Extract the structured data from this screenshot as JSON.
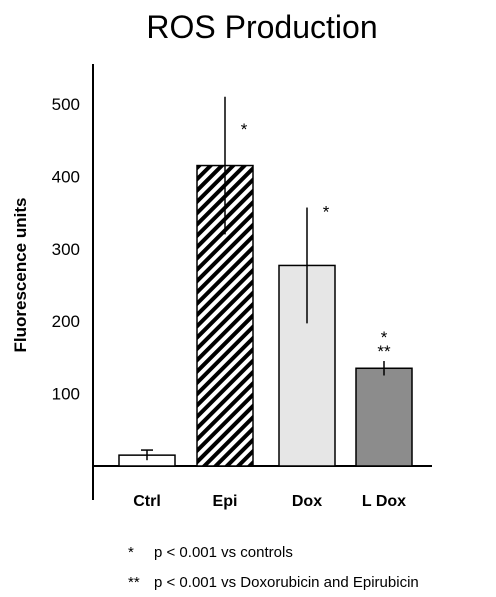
{
  "chart_data": {
    "type": "bar",
    "title": "ROS Production",
    "ylabel": "Fluorescence units",
    "xlabel": "",
    "categories": [
      "Ctrl",
      "Epi",
      "Dox",
      "L Dox"
    ],
    "values": [
      15,
      415,
      277,
      135
    ],
    "errors": [
      7,
      95,
      80,
      10
    ],
    "annotations": [
      "",
      "*",
      "*",
      "*\n**"
    ],
    "bar_styles": [
      "white",
      "hatched",
      "lightgray",
      "gray"
    ],
    "ylim": [
      0,
      550
    ],
    "yticks": [
      100,
      200,
      300,
      400,
      500
    ],
    "colors": {
      "white": "#ffffff",
      "lightgray": "#e6e6e6",
      "gray": "#8c8c8c",
      "hatch": "#000000"
    },
    "grid": false,
    "legend": "none"
  },
  "footnotes": [
    {
      "symbol": "*",
      "text": "p < 0.001 vs controls"
    },
    {
      "symbol": "**",
      "text": "p < 0.001 vs Doxorubicin and Epirubicin"
    }
  ]
}
